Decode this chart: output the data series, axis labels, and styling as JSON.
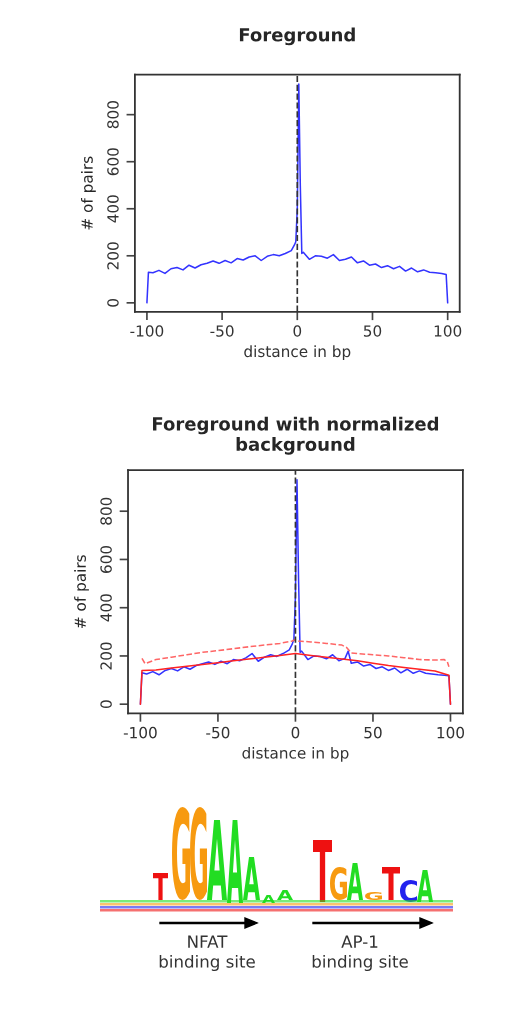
{
  "chart_data": [
    {
      "type": "line",
      "title": "Foreground",
      "xlabel": "distance in bp",
      "ylabel": "# of pairs",
      "xlim": [
        -108,
        108
      ],
      "ylim": [
        -38,
        970
      ],
      "xticks": [
        -100,
        -50,
        0,
        50,
        100
      ],
      "yticks": [
        0,
        200,
        400,
        600,
        800
      ],
      "grid": false,
      "legend": false,
      "line_style": "solid",
      "ref_lines": [
        {
          "axis": "x",
          "value": 0,
          "color": "#333333",
          "line_style": "dashed"
        }
      ],
      "series": [
        {
          "color": "#3333ff",
          "x": [
            -100,
            -99,
            -96,
            -92,
            -88,
            -84,
            -80,
            -76,
            -72,
            -68,
            -64,
            -60,
            -56,
            -52,
            -48,
            -44,
            -40,
            -36,
            -32,
            -28,
            -24,
            -20,
            -16,
            -12,
            -8,
            -4,
            -2,
            -1,
            0,
            1,
            2,
            3,
            4,
            8,
            12,
            16,
            20,
            24,
            28,
            32,
            36,
            40,
            44,
            48,
            52,
            56,
            60,
            64,
            68,
            72,
            76,
            80,
            84,
            88,
            92,
            96,
            99,
            100
          ],
          "values": [
            0,
            130,
            128,
            138,
            125,
            145,
            150,
            140,
            160,
            148,
            162,
            168,
            178,
            168,
            180,
            170,
            188,
            182,
            195,
            200,
            180,
            198,
            205,
            200,
            210,
            222,
            245,
            260,
            400,
            930,
            500,
            210,
            215,
            185,
            200,
            198,
            190,
            205,
            180,
            185,
            195,
            170,
            178,
            160,
            165,
            150,
            158,
            145,
            155,
            135,
            148,
            132,
            140,
            130,
            128,
            125,
            120,
            0
          ]
        }
      ]
    },
    {
      "type": "line",
      "title": "Foreground with normalized\nbackground",
      "xlabel": "distance in bp",
      "ylabel": "# of pairs",
      "xlim": [
        -108,
        108
      ],
      "ylim": [
        -38,
        970
      ],
      "xticks": [
        -100,
        -50,
        0,
        50,
        100
      ],
      "yticks": [
        0,
        200,
        400,
        600,
        800
      ],
      "grid": false,
      "legend": false,
      "ref_lines": [
        {
          "axis": "x",
          "value": 0,
          "color": "#333333",
          "line_style": "dashed"
        }
      ],
      "series": [
        {
          "color": "#3333ff",
          "line_style": "solid",
          "x": [
            -100,
            -99,
            -96,
            -92,
            -88,
            -84,
            -80,
            -76,
            -72,
            -68,
            -64,
            -60,
            -56,
            -52,
            -48,
            -44,
            -40,
            -36,
            -32,
            -28,
            -24,
            -20,
            -16,
            -12,
            -8,
            -4,
            -2,
            -1,
            0,
            1,
            2,
            3,
            4,
            8,
            12,
            16,
            20,
            24,
            28,
            32,
            34,
            36,
            40,
            44,
            48,
            52,
            56,
            60,
            64,
            68,
            72,
            76,
            80,
            84,
            88,
            92,
            96,
            99,
            100
          ],
          "values": [
            0,
            130,
            125,
            135,
            122,
            140,
            148,
            138,
            155,
            145,
            160,
            168,
            175,
            165,
            178,
            168,
            185,
            180,
            192,
            210,
            178,
            195,
            205,
            198,
            210,
            225,
            250,
            270,
            450,
            930,
            520,
            215,
            220,
            185,
            200,
            198,
            188,
            205,
            180,
            190,
            220,
            170,
            175,
            158,
            165,
            148,
            155,
            140,
            150,
            130,
            145,
            128,
            138,
            128,
            125,
            122,
            120,
            118,
            0
          ]
        },
        {
          "color": "#ff2222",
          "line_style": "solid",
          "x": [
            -100,
            -99,
            -90,
            -80,
            -70,
            -60,
            -50,
            -40,
            -30,
            -20,
            -10,
            0,
            10,
            20,
            30,
            40,
            50,
            60,
            70,
            80,
            90,
            99,
            100
          ],
          "values": [
            0,
            140,
            142,
            150,
            157,
            165,
            172,
            180,
            187,
            195,
            202,
            210,
            202,
            195,
            187,
            180,
            170,
            160,
            152,
            145,
            138,
            120,
            0
          ]
        },
        {
          "color": "#ff6666",
          "line_style": "dashed",
          "x": [
            -99,
            -97,
            -90,
            -80,
            -70,
            -60,
            -50,
            -40,
            -30,
            -20,
            -10,
            -2,
            0,
            2,
            10,
            20,
            30,
            33,
            36,
            40,
            50,
            60,
            70,
            80,
            90,
            96,
            98,
            99
          ],
          "values": [
            190,
            168,
            185,
            195,
            205,
            215,
            222,
            230,
            238,
            245,
            252,
            262,
            268,
            262,
            258,
            252,
            245,
            235,
            212,
            210,
            205,
            200,
            193,
            185,
            183,
            185,
            175,
            155
          ]
        }
      ]
    },
    {
      "type": "other",
      "annotations": [
        "NFAT\nbinding site",
        "AP-1\nbinding site"
      ]
    }
  ]
}
